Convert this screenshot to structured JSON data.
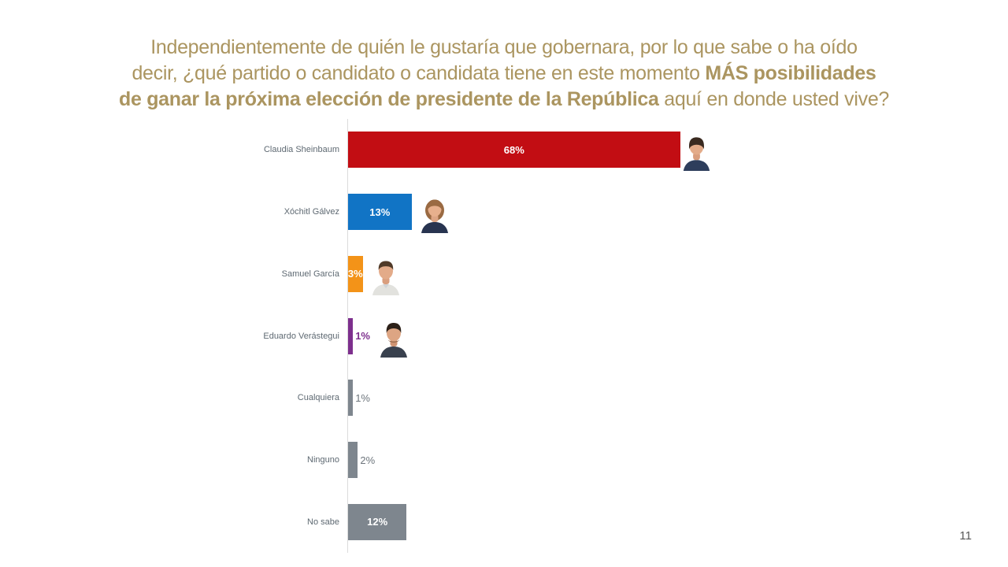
{
  "title": {
    "color": "#ab9560",
    "lines": [
      {
        "pre": "Independientemente de quién le gustaría que gobernara, por lo que sabe o ha oído",
        "bold": "",
        "post": ""
      },
      {
        "pre": "decir, ¿qué partido o candidato o candidata tiene en este momento ",
        "bold": "MÁS posibilidades",
        "post": ""
      },
      {
        "pre": "",
        "bold": "de ganar la próxima elección de presidente de la República",
        "post": " aquí en donde usted vive?"
      }
    ]
  },
  "page_number": "11",
  "chart_data": {
    "type": "bar",
    "orientation": "horizontal",
    "title": "Independientemente de quién le gustaría que gobernara, por lo que sabe o ha oído decir, ¿qué partido o candidato o candidata tiene en este momento MÁS posibilidades de ganar la próxima elección de presidente de la República aquí en donde usted vive?",
    "unit": "percent",
    "xlim": [
      0,
      100
    ],
    "grid": false,
    "legend": false,
    "categories": [
      "Claudia Sheinbaum",
      "Xóchitl Gálvez",
      "Samuel García",
      "Eduardo Verástegui",
      "Cualquiera",
      "Ninguno",
      "No sabe"
    ],
    "values": [
      68,
      13,
      3,
      1,
      1,
      2,
      12
    ],
    "bars": [
      {
        "category": "Claudia Sheinbaum",
        "value": 68,
        "display": "68%",
        "color": "#c20d13",
        "label_position": "inside",
        "label_color": "#ffffff",
        "photo": "claudia-sheinbaum"
      },
      {
        "category": "Xóchitl Gálvez",
        "value": 13,
        "display": "13%",
        "color": "#1174c5",
        "label_position": "inside",
        "label_color": "#ffffff",
        "photo": "xochitl-galvez"
      },
      {
        "category": "Samuel García",
        "value": 3,
        "display": "3%",
        "color": "#f39318",
        "label_position": "inside",
        "label_color": "#ffffff",
        "photo": "samuel-garcia"
      },
      {
        "category": "Eduardo Verástegui",
        "value": 1,
        "display": "1%",
        "color": "#7d2f8d",
        "label_position": "outside",
        "label_color": "#7d2f8d",
        "photo": "eduardo-verastegui"
      },
      {
        "category": "Cualquiera",
        "value": 1,
        "display": "1%",
        "color": "#7e868e",
        "label_position": "outside",
        "label_color": "#6d757c",
        "photo": null
      },
      {
        "category": "Ninguno",
        "value": 2,
        "display": "2%",
        "color": "#7e868e",
        "label_position": "outside",
        "label_color": "#6d757c",
        "photo": null
      },
      {
        "category": "No sabe",
        "value": 12,
        "display": "12%",
        "color": "#7e868e",
        "label_position": "inside",
        "label_color": "#ffffff",
        "photo": null
      }
    ]
  }
}
